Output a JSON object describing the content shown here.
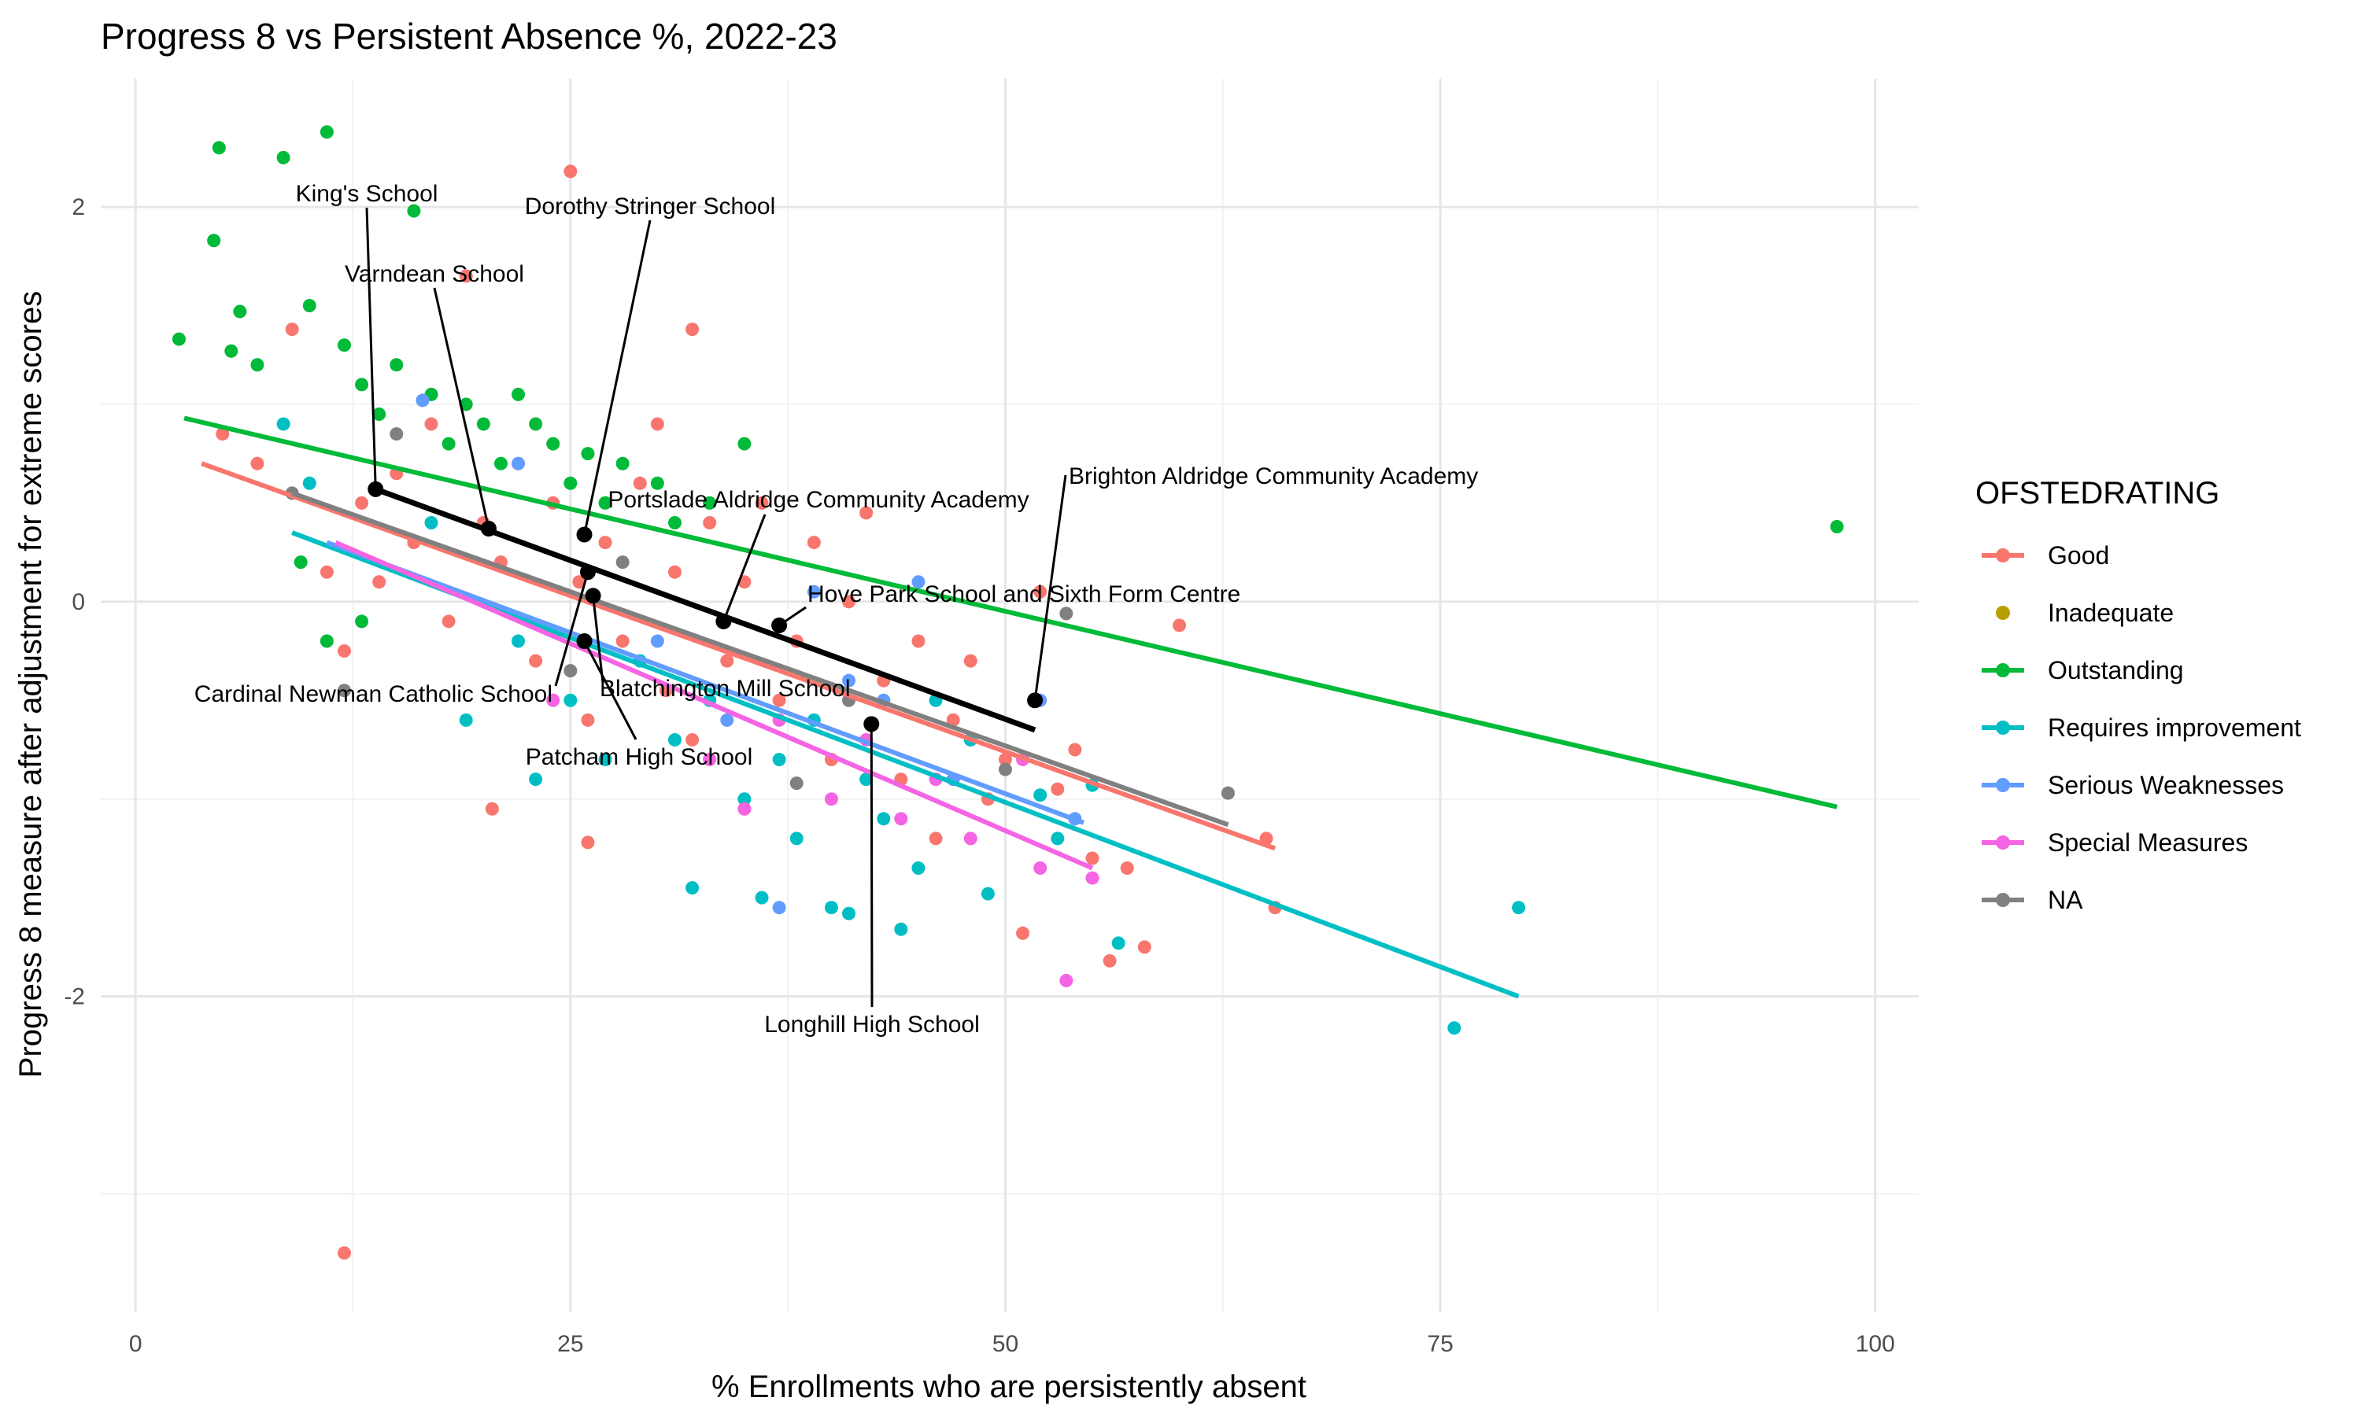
{
  "chart_data": {
    "type": "scatter",
    "title": "Progress 8 vs Persistent Absence %, 2022-23",
    "xlabel": "% Enrollments who are persistently absent",
    "ylabel": "Progress 8 measure after adjustment for extreme scores",
    "xlim": [
      -2,
      102.5
    ],
    "ylim": [
      -3.6,
      2.65
    ],
    "x_ticks": [
      0,
      25,
      50,
      75,
      100
    ],
    "x_tick_labels": [
      "0",
      "25",
      "50",
      "75",
      "100"
    ],
    "y_ticks": [
      -2,
      0,
      2
    ],
    "y_tick_labels": [
      "-2",
      "0",
      "2"
    ],
    "y_minor_gridlines": [
      -3,
      -1,
      1
    ],
    "x_minor_gridlines": [
      12.5,
      37.5,
      62.5,
      87.5
    ],
    "grid": true,
    "legend": {
      "title": "OFSTEDRATING",
      "position": "right",
      "entries": [
        {
          "name": "Good",
          "color": "#F8766D"
        },
        {
          "name": "Inadequate",
          "color": "#B79F00"
        },
        {
          "name": "Outstanding",
          "color": "#00BA38"
        },
        {
          "name": "Requires improvement",
          "color": "#00BFC4"
        },
        {
          "name": "Serious Weaknesses",
          "color": "#619CFF"
        },
        {
          "name": "Special Measures",
          "color": "#F564E3"
        },
        {
          "name": "NA",
          "color": "#808080"
        }
      ]
    },
    "series": [
      {
        "name": "Good",
        "color": "#F8766D",
        "points": [
          [
            5,
            0.85
          ],
          [
            7,
            0.7
          ],
          [
            9,
            1.38
          ],
          [
            11,
            0.15
          ],
          [
            12,
            -0.25
          ],
          [
            13,
            0.5
          ],
          [
            14,
            0.1
          ],
          [
            15,
            0.65
          ],
          [
            16,
            0.3
          ],
          [
            17,
            0.9
          ],
          [
            18,
            -0.1
          ],
          [
            19,
            1.65
          ],
          [
            20,
            0.4
          ],
          [
            20.5,
            -1.05
          ],
          [
            21,
            0.2
          ],
          [
            22,
            0.7
          ],
          [
            23,
            -0.3
          ],
          [
            24,
            0.5
          ],
          [
            25,
            2.18
          ],
          [
            25.5,
            0.1
          ],
          [
            26,
            -0.6
          ],
          [
            26,
            -1.22
          ],
          [
            27,
            0.3
          ],
          [
            28,
            -0.2
          ],
          [
            29,
            0.6
          ],
          [
            30,
            0.9
          ],
          [
            30.5,
            -0.45
          ],
          [
            31,
            0.15
          ],
          [
            32,
            1.38
          ],
          [
            32,
            -0.7
          ],
          [
            33,
            0.4
          ],
          [
            34,
            -0.3
          ],
          [
            35,
            0.1
          ],
          [
            35,
            -1.05
          ],
          [
            36,
            0.5
          ],
          [
            37,
            -0.5
          ],
          [
            38,
            -0.2
          ],
          [
            39,
            0.3
          ],
          [
            40,
            -0.8
          ],
          [
            41,
            0
          ],
          [
            42,
            0.45
          ],
          [
            43,
            -0.4
          ],
          [
            44,
            -0.9
          ],
          [
            45,
            -0.2
          ],
          [
            46,
            -1.2
          ],
          [
            47,
            -0.6
          ],
          [
            48,
            -0.3
          ],
          [
            49,
            -1.0
          ],
          [
            50,
            -0.8
          ],
          [
            51,
            -1.68
          ],
          [
            52,
            0.05
          ],
          [
            53,
            -0.95
          ],
          [
            54,
            -0.75
          ],
          [
            55,
            -1.3
          ],
          [
            56,
            -1.82
          ],
          [
            57,
            -1.35
          ],
          [
            58,
            -1.75
          ],
          [
            60,
            -0.12
          ],
          [
            65.5,
            -1.55
          ],
          [
            65,
            -1.2
          ],
          [
            12,
            -3.3
          ]
        ]
      },
      {
        "name": "Outstanding",
        "color": "#00BA38",
        "points": [
          [
            2.5,
            1.33
          ],
          [
            4.5,
            1.83
          ],
          [
            4.8,
            2.3
          ],
          [
            5.5,
            1.27
          ],
          [
            6,
            1.47
          ],
          [
            7,
            1.2
          ],
          [
            8.5,
            2.25
          ],
          [
            10,
            1.5
          ],
          [
            11,
            2.38
          ],
          [
            12,
            1.3
          ],
          [
            13,
            1.1
          ],
          [
            14,
            0.95
          ],
          [
            15,
            1.2
          ],
          [
            16,
            1.98
          ],
          [
            17,
            1.05
          ],
          [
            18,
            0.8
          ],
          [
            19,
            1.0
          ],
          [
            20,
            0.9
          ],
          [
            21,
            0.7
          ],
          [
            22,
            1.05
          ],
          [
            23,
            0.9
          ],
          [
            24,
            0.8
          ],
          [
            25,
            0.6
          ],
          [
            26,
            0.75
          ],
          [
            27,
            0.5
          ],
          [
            28,
            0.7
          ],
          [
            30,
            0.6
          ],
          [
            31,
            0.4
          ],
          [
            33,
            0.5
          ],
          [
            35,
            0.8
          ],
          [
            9.5,
            0.2
          ],
          [
            11,
            -0.2
          ],
          [
            13,
            -0.1
          ],
          [
            97.8,
            0.38
          ]
        ]
      },
      {
        "name": "Requires improvement",
        "color": "#00BFC4",
        "points": [
          [
            8.5,
            0.9
          ],
          [
            10,
            0.6
          ],
          [
            17,
            0.4
          ],
          [
            19,
            -0.6
          ],
          [
            22,
            -0.2
          ],
          [
            23,
            -0.9
          ],
          [
            25,
            -0.5
          ],
          [
            27,
            -0.8
          ],
          [
            29,
            -0.3
          ],
          [
            31,
            -0.7
          ],
          [
            32,
            -1.45
          ],
          [
            33,
            -0.5
          ],
          [
            35,
            -1.0
          ],
          [
            36,
            -1.5
          ],
          [
            37,
            -0.8
          ],
          [
            38,
            -1.2
          ],
          [
            39,
            -0.6
          ],
          [
            40,
            -1.55
          ],
          [
            41,
            -1.58
          ],
          [
            42,
            -0.9
          ],
          [
            43,
            -1.1
          ],
          [
            44,
            -1.66
          ],
          [
            45,
            -1.35
          ],
          [
            46,
            -0.5
          ],
          [
            48,
            -0.7
          ],
          [
            49,
            -1.48
          ],
          [
            52,
            -0.98
          ],
          [
            53,
            -1.2
          ],
          [
            55,
            -0.93
          ],
          [
            56.5,
            -1.73
          ],
          [
            75.8,
            -2.16
          ],
          [
            79.5,
            -1.55
          ]
        ]
      },
      {
        "name": "Serious Weaknesses",
        "color": "#619CFF",
        "points": [
          [
            16.5,
            1.02
          ],
          [
            22,
            0.7
          ],
          [
            30,
            -0.2
          ],
          [
            34,
            -0.6
          ],
          [
            37,
            -1.55
          ],
          [
            39,
            0.05
          ],
          [
            41,
            -0.4
          ],
          [
            43,
            -0.5
          ],
          [
            45,
            0.1
          ],
          [
            47,
            -0.9
          ],
          [
            52,
            -0.5
          ],
          [
            54,
            -1.1
          ]
        ]
      },
      {
        "name": "Special Measures",
        "color": "#F564E3",
        "points": [
          [
            24,
            -0.5
          ],
          [
            33,
            -0.8
          ],
          [
            35,
            -1.05
          ],
          [
            37,
            -0.6
          ],
          [
            40,
            -1.0
          ],
          [
            42,
            -0.7
          ],
          [
            44,
            -1.1
          ],
          [
            46,
            -0.9
          ],
          [
            48,
            -1.2
          ],
          [
            51,
            -0.8
          ],
          [
            52,
            -1.35
          ],
          [
            53.5,
            -1.92
          ],
          [
            55,
            -1.4
          ]
        ]
      },
      {
        "name": "NA",
        "color": "#808080",
        "points": [
          [
            9,
            0.55
          ],
          [
            12,
            -0.45
          ],
          [
            15,
            0.85
          ],
          [
            25,
            -0.35
          ],
          [
            28,
            0.2
          ],
          [
            38,
            -0.92
          ],
          [
            41,
            -0.5
          ],
          [
            50,
            -0.85
          ],
          [
            53.5,
            -0.06
          ],
          [
            62.8,
            -0.97
          ]
        ]
      }
    ],
    "fit_lines": [
      {
        "name": "Good",
        "color": "#F8766D",
        "x": [
          3.8,
          65.5
        ],
        "y": [
          0.7,
          -1.25
        ]
      },
      {
        "name": "Outstanding",
        "color": "#00BA38",
        "x": [
          2.8,
          97.8
        ],
        "y": [
          0.93,
          -1.04
        ]
      },
      {
        "name": "Requires improvement",
        "color": "#00BFC4",
        "x": [
          9,
          79.5
        ],
        "y": [
          0.35,
          -2.0
        ]
      },
      {
        "name": "Serious Weaknesses",
        "color": "#619CFF",
        "x": [
          11,
          54.5
        ],
        "y": [
          0.3,
          -1.12
        ]
      },
      {
        "name": "Special Measures",
        "color": "#F564E3",
        "x": [
          11.5,
          55
        ],
        "y": [
          0.3,
          -1.35
        ]
      },
      {
        "name": "NA",
        "color": "#808080",
        "x": [
          9,
          62.8
        ],
        "y": [
          0.55,
          -1.13
        ]
      },
      {
        "name": "Highlighted schools",
        "color": "#000000",
        "x": [
          13.8,
          51.7
        ],
        "y": [
          0.57,
          -0.65
        ]
      }
    ],
    "labeled_schools": [
      {
        "name": "King's School",
        "x": 13.8,
        "y": 0.57
      },
      {
        "name": "Dorothy Stringer School",
        "x": 25.8,
        "y": 0.34
      },
      {
        "name": "Varndean School",
        "x": 20.3,
        "y": 0.37
      },
      {
        "name": "Portslade Aldridge Community Academy",
        "x": 33.8,
        "y": -0.1
      },
      {
        "name": "Brighton Aldridge Community Academy",
        "x": 51.7,
        "y": -0.5
      },
      {
        "name": "Hove Park School and Sixth Form Centre",
        "x": 37.0,
        "y": -0.12
      },
      {
        "name": "Cardinal Newman Catholic School",
        "x": 26.0,
        "y": 0.15
      },
      {
        "name": "Blatchington Mill School",
        "x": 26.3,
        "y": 0.03
      },
      {
        "name": "Patcham High School",
        "x": 25.8,
        "y": -0.2
      },
      {
        "name": "Longhill High School",
        "x": 42.3,
        "y": -0.62
      }
    ]
  }
}
